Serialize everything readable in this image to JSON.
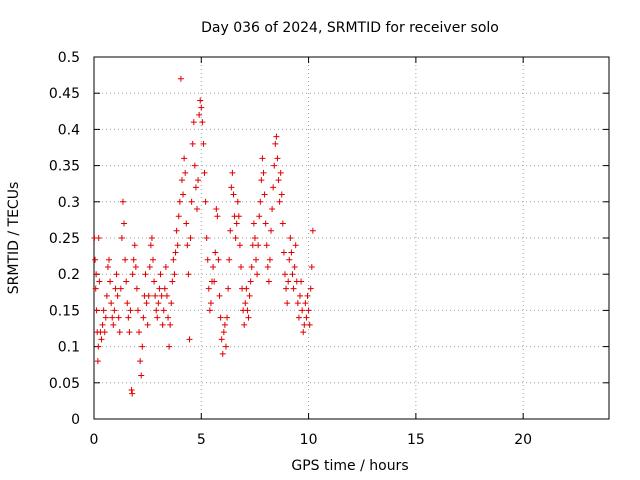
{
  "chart_data": {
    "type": "scatter",
    "title": "Day 036 of 2024, SRMTID for receiver solo",
    "xlabel": "GPS time / hours",
    "ylabel": "SRMTID / TECUs",
    "xlim": [
      0,
      24
    ],
    "ylim": [
      0,
      0.5
    ],
    "x_ticks": [
      0,
      5,
      10,
      15,
      20
    ],
    "y_ticks": [
      0,
      0.05,
      0.1,
      0.15,
      0.2,
      0.25,
      0.3,
      0.35,
      0.4,
      0.45,
      0.5
    ],
    "x_tick_labels": [
      "0",
      "5",
      "10",
      "15",
      "20"
    ],
    "y_tick_labels": [
      "0",
      "0.05",
      "0.1",
      "0.15",
      "0.2",
      "0.25",
      "0.3",
      "0.35",
      "0.4",
      "0.45",
      "0.5"
    ],
    "grid": true,
    "marker": "+",
    "marker_color": "#e00000",
    "series": [
      {
        "points": [
          [
            0.02,
            0.25
          ],
          [
            0.05,
            0.22
          ],
          [
            0.08,
            0.18
          ],
          [
            0.1,
            0.2
          ],
          [
            0.12,
            0.15
          ],
          [
            0.15,
            0.12
          ],
          [
            0.18,
            0.08
          ],
          [
            0.2,
            0.1
          ],
          [
            0.22,
            0.25
          ],
          [
            0.25,
            0.19
          ],
          [
            0.3,
            0.12
          ],
          [
            0.35,
            0.11
          ],
          [
            0.4,
            0.13
          ],
          [
            0.45,
            0.15
          ],
          [
            0.5,
            0.12
          ],
          [
            0.55,
            0.14
          ],
          [
            0.6,
            0.17
          ],
          [
            0.65,
            0.21
          ],
          [
            0.7,
            0.22
          ],
          [
            0.75,
            0.19
          ],
          [
            0.8,
            0.16
          ],
          [
            0.85,
            0.14
          ],
          [
            0.9,
            0.13
          ],
          [
            0.95,
            0.15
          ],
          [
            1.0,
            0.18
          ],
          [
            1.05,
            0.2
          ],
          [
            1.1,
            0.17
          ],
          [
            1.15,
            0.14
          ],
          [
            1.2,
            0.12
          ],
          [
            1.25,
            0.18
          ],
          [
            1.3,
            0.25
          ],
          [
            1.35,
            0.3
          ],
          [
            1.4,
            0.27
          ],
          [
            1.45,
            0.22
          ],
          [
            1.5,
            0.19
          ],
          [
            1.55,
            0.16
          ],
          [
            1.6,
            0.14
          ],
          [
            1.65,
            0.12
          ],
          [
            1.7,
            0.15
          ],
          [
            1.75,
            0.04
          ],
          [
            1.78,
            0.035
          ],
          [
            1.8,
            0.2
          ],
          [
            1.85,
            0.22
          ],
          [
            1.9,
            0.24
          ],
          [
            1.95,
            0.21
          ],
          [
            2.0,
            0.18
          ],
          [
            2.05,
            0.15
          ],
          [
            2.1,
            0.12
          ],
          [
            2.15,
            0.08
          ],
          [
            2.2,
            0.06
          ],
          [
            2.25,
            0.1
          ],
          [
            2.3,
            0.14
          ],
          [
            2.35,
            0.17
          ],
          [
            2.4,
            0.2
          ],
          [
            2.45,
            0.16
          ],
          [
            2.5,
            0.13
          ],
          [
            2.55,
            0.17
          ],
          [
            2.6,
            0.21
          ],
          [
            2.65,
            0.24
          ],
          [
            2.7,
            0.25
          ],
          [
            2.75,
            0.22
          ],
          [
            2.8,
            0.19
          ],
          [
            2.85,
            0.17
          ],
          [
            2.9,
            0.15
          ],
          [
            2.95,
            0.14
          ],
          [
            3.0,
            0.16
          ],
          [
            3.05,
            0.18
          ],
          [
            3.1,
            0.2
          ],
          [
            3.15,
            0.17
          ],
          [
            3.2,
            0.13
          ],
          [
            3.25,
            0.15
          ],
          [
            3.3,
            0.18
          ],
          [
            3.35,
            0.21
          ],
          [
            3.4,
            0.17
          ],
          [
            3.45,
            0.14
          ],
          [
            3.5,
            0.1
          ],
          [
            3.55,
            0.13
          ],
          [
            3.6,
            0.16
          ],
          [
            3.65,
            0.19
          ],
          [
            3.7,
            0.22
          ],
          [
            3.75,
            0.2
          ],
          [
            3.8,
            0.23
          ],
          [
            3.85,
            0.26
          ],
          [
            3.9,
            0.24
          ],
          [
            3.95,
            0.28
          ],
          [
            4.0,
            0.3
          ],
          [
            4.05,
            0.47
          ],
          [
            4.1,
            0.33
          ],
          [
            4.15,
            0.31
          ],
          [
            4.2,
            0.36
          ],
          [
            4.25,
            0.34
          ],
          [
            4.3,
            0.27
          ],
          [
            4.35,
            0.24
          ],
          [
            4.4,
            0.2
          ],
          [
            4.45,
            0.11
          ],
          [
            4.5,
            0.25
          ],
          [
            4.55,
            0.3
          ],
          [
            4.6,
            0.38
          ],
          [
            4.65,
            0.41
          ],
          [
            4.7,
            0.35
          ],
          [
            4.75,
            0.32
          ],
          [
            4.8,
            0.29
          ],
          [
            4.85,
            0.33
          ],
          [
            4.9,
            0.42
          ],
          [
            4.95,
            0.44
          ],
          [
            5.0,
            0.43
          ],
          [
            5.05,
            0.41
          ],
          [
            5.1,
            0.38
          ],
          [
            5.15,
            0.34
          ],
          [
            5.2,
            0.3
          ],
          [
            5.25,
            0.25
          ],
          [
            5.3,
            0.22
          ],
          [
            5.35,
            0.18
          ],
          [
            5.4,
            0.15
          ],
          [
            5.45,
            0.16
          ],
          [
            5.5,
            0.19
          ],
          [
            5.55,
            0.21
          ],
          [
            5.6,
            0.19
          ],
          [
            5.65,
            0.23
          ],
          [
            5.7,
            0.29
          ],
          [
            5.75,
            0.28
          ],
          [
            5.8,
            0.22
          ],
          [
            5.85,
            0.17
          ],
          [
            5.9,
            0.14
          ],
          [
            5.95,
            0.11
          ],
          [
            6.0,
            0.09
          ],
          [
            6.05,
            0.12
          ],
          [
            6.1,
            0.13
          ],
          [
            6.15,
            0.1
          ],
          [
            6.2,
            0.14
          ],
          [
            6.25,
            0.18
          ],
          [
            6.3,
            0.22
          ],
          [
            6.35,
            0.26
          ],
          [
            6.4,
            0.32
          ],
          [
            6.45,
            0.34
          ],
          [
            6.5,
            0.31
          ],
          [
            6.55,
            0.28
          ],
          [
            6.6,
            0.25
          ],
          [
            6.65,
            0.27
          ],
          [
            6.7,
            0.3
          ],
          [
            6.75,
            0.28
          ],
          [
            6.8,
            0.24
          ],
          [
            6.85,
            0.21
          ],
          [
            6.9,
            0.18
          ],
          [
            6.95,
            0.15
          ],
          [
            7.0,
            0.13
          ],
          [
            7.05,
            0.16
          ],
          [
            7.1,
            0.18
          ],
          [
            7.15,
            0.15
          ],
          [
            7.2,
            0.14
          ],
          [
            7.25,
            0.17
          ],
          [
            7.3,
            0.19
          ],
          [
            7.35,
            0.21
          ],
          [
            7.4,
            0.24
          ],
          [
            7.45,
            0.27
          ],
          [
            7.5,
            0.25
          ],
          [
            7.55,
            0.22
          ],
          [
            7.6,
            0.2
          ],
          [
            7.65,
            0.24
          ],
          [
            7.7,
            0.28
          ],
          [
            7.75,
            0.3
          ],
          [
            7.8,
            0.33
          ],
          [
            7.85,
            0.36
          ],
          [
            7.9,
            0.34
          ],
          [
            7.95,
            0.31
          ],
          [
            8.0,
            0.27
          ],
          [
            8.05,
            0.24
          ],
          [
            8.1,
            0.21
          ],
          [
            8.15,
            0.19
          ],
          [
            8.2,
            0.22
          ],
          [
            8.25,
            0.26
          ],
          [
            8.3,
            0.29
          ],
          [
            8.35,
            0.32
          ],
          [
            8.4,
            0.35
          ],
          [
            8.45,
            0.38
          ],
          [
            8.5,
            0.39
          ],
          [
            8.55,
            0.36
          ],
          [
            8.6,
            0.33
          ],
          [
            8.65,
            0.3
          ],
          [
            8.7,
            0.34
          ],
          [
            8.75,
            0.31
          ],
          [
            8.8,
            0.27
          ],
          [
            8.85,
            0.23
          ],
          [
            8.9,
            0.2
          ],
          [
            8.95,
            0.18
          ],
          [
            9.0,
            0.16
          ],
          [
            9.05,
            0.19
          ],
          [
            9.1,
            0.22
          ],
          [
            9.15,
            0.25
          ],
          [
            9.2,
            0.23
          ],
          [
            9.25,
            0.2
          ],
          [
            9.3,
            0.18
          ],
          [
            9.35,
            0.21
          ],
          [
            9.4,
            0.24
          ],
          [
            9.45,
            0.19
          ],
          [
            9.5,
            0.16
          ],
          [
            9.55,
            0.14
          ],
          [
            9.6,
            0.17
          ],
          [
            9.65,
            0.19
          ],
          [
            9.7,
            0.15
          ],
          [
            9.75,
            0.12
          ],
          [
            9.8,
            0.13
          ],
          [
            9.85,
            0.16
          ],
          [
            9.9,
            0.14
          ],
          [
            9.95,
            0.17
          ],
          [
            10.0,
            0.15
          ],
          [
            10.05,
            0.13
          ],
          [
            10.1,
            0.18
          ],
          [
            10.15,
            0.21
          ],
          [
            10.2,
            0.26
          ]
        ]
      }
    ]
  }
}
